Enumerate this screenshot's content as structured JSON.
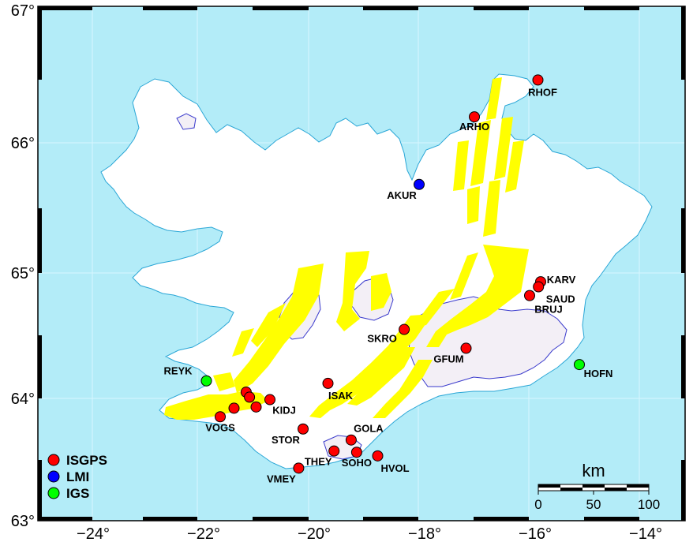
{
  "colors": {
    "ocean": "#b3ecf8",
    "land": "#ffffff",
    "glacier": "#f3eff6",
    "glacier_edge": "#3a3acc",
    "fissure": "#ffff00",
    "coast": "#2aa6d6",
    "ISGPS": "#ff0000",
    "LMI": "#0000ff",
    "IGS": "#00ff00"
  },
  "axes": {
    "lon_ticks": [
      {
        "value": -24,
        "label": "−24°"
      },
      {
        "value": -22,
        "label": "−22°"
      },
      {
        "value": -20,
        "label": "−20°"
      },
      {
        "value": -18,
        "label": "−18°"
      },
      {
        "value": -16,
        "label": "−16°"
      },
      {
        "value": -14,
        "label": "−14°"
      }
    ],
    "lat_ticks": [
      {
        "value": 63,
        "label": "63°"
      },
      {
        "value": 64,
        "label": "64°"
      },
      {
        "value": 65,
        "label": "65°"
      },
      {
        "value": 66,
        "label": "66°"
      },
      {
        "value": 67,
        "label": "67°"
      }
    ]
  },
  "stations": [
    {
      "name": "RHOF",
      "network": "ISGPS",
      "lon": -15.95,
      "lat": 66.46
    },
    {
      "name": "ARHO",
      "network": "ISGPS",
      "lon": -17.1,
      "lat": 66.19
    },
    {
      "name": "AKUR",
      "network": "LMI",
      "lon": -18.1,
      "lat": 65.68
    },
    {
      "name": "KARV",
      "network": "ISGPS",
      "lon": -15.9,
      "lat": 64.93
    },
    {
      "name": "SAUD",
      "network": "ISGPS",
      "lon": -15.94,
      "lat": 64.89
    },
    {
      "name": "BRUJ",
      "network": "ISGPS",
      "lon": -16.1,
      "lat": 64.82
    },
    {
      "name": "SKRO",
      "network": "ISGPS",
      "lon": -18.37,
      "lat": 64.55
    },
    {
      "name": "GFUM",
      "network": "ISGPS",
      "lon": -17.25,
      "lat": 64.4
    },
    {
      "name": "HOFN",
      "network": "IGS",
      "lon": -15.2,
      "lat": 64.27
    },
    {
      "name": "REYK",
      "network": "IGS",
      "lon": -21.95,
      "lat": 64.14
    },
    {
      "name": "ISAK",
      "network": "ISGPS",
      "lon": -19.75,
      "lat": 64.12
    },
    {
      "name": "KIDJ",
      "network": "ISGPS",
      "lon": -20.8,
      "lat": 63.99
    },
    {
      "name": "VOGS",
      "network": "ISGPS",
      "lon": -21.7,
      "lat": 63.85
    },
    {
      "name": "STOR",
      "network": "ISGPS",
      "lon": -20.2,
      "lat": 63.75
    },
    {
      "name": "GOLA",
      "network": "ISGPS",
      "lon": -19.33,
      "lat": 63.66
    },
    {
      "name": "THEY",
      "network": "ISGPS",
      "lon": -19.64,
      "lat": 63.57
    },
    {
      "name": "SOHO",
      "network": "ISGPS",
      "lon": -19.23,
      "lat": 63.56
    },
    {
      "name": "HVOL",
      "network": "ISGPS",
      "lon": -18.85,
      "lat": 63.53
    },
    {
      "name": "VMEY",
      "network": "ISGPS",
      "lon": -20.28,
      "lat": 63.43
    },
    {
      "name": "",
      "network": "ISGPS",
      "lon": -21.23,
      "lat": 64.05
    },
    {
      "name": "",
      "network": "ISGPS",
      "lon": -21.17,
      "lat": 64.01
    },
    {
      "name": "",
      "network": "ISGPS",
      "lon": -21.05,
      "lat": 63.93
    },
    {
      "name": "",
      "network": "ISGPS",
      "lon": -21.45,
      "lat": 63.92
    }
  ],
  "legend": [
    {
      "network": "ISGPS",
      "label": "ISGPS"
    },
    {
      "network": "LMI",
      "label": "LMI"
    },
    {
      "network": "IGS",
      "label": "IGS"
    }
  ],
  "scale_bar": {
    "title": "km",
    "ticks": [
      {
        "km": 0,
        "label": "0"
      },
      {
        "km": 50,
        "label": "50"
      },
      {
        "km": 100,
        "label": "100"
      }
    ]
  }
}
